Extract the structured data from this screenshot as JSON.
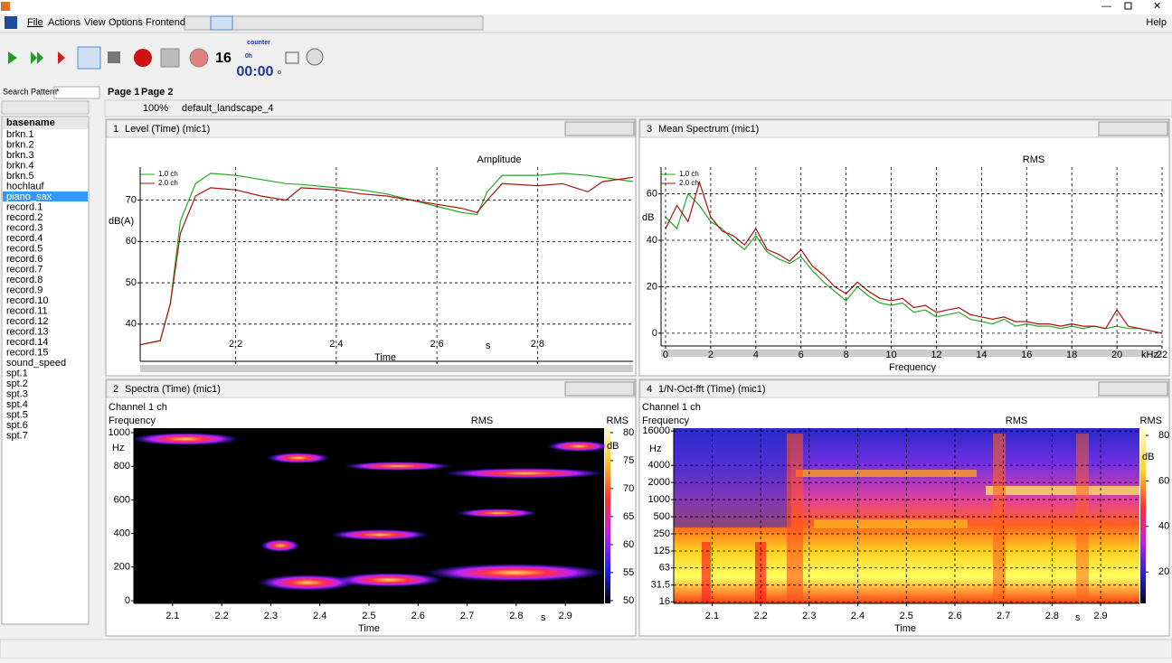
{
  "menu": [
    "File",
    "Actions",
    "View",
    "Options",
    "Frontend"
  ],
  "help": "Help",
  "toolbar": {
    "count": "16",
    "counter_label": "counter",
    "hours": "0h",
    "time": "00:00",
    "small": "o"
  },
  "sidebar": {
    "search_label": "Search Pattern",
    "search_value": "*",
    "header": "basename",
    "items": [
      "brkn.1",
      "brkn.2",
      "brkn.3",
      "brkn.4",
      "brkn.5",
      "hochlauf",
      "piano_sax",
      "record.1",
      "record.2",
      "record.3",
      "record.4",
      "record.5",
      "record.6",
      "record.7",
      "record.8",
      "record.9",
      "record.10",
      "record.11",
      "record.12",
      "record.13",
      "record.14",
      "record.15",
      "sound_speed",
      "spt.1",
      "spt.2",
      "spt.3",
      "spt.4",
      "spt.5",
      "spt.6",
      "spt.7"
    ],
    "selected": "piano_sax"
  },
  "tabs": [
    "Page 1",
    "Page 2"
  ],
  "zoom": "100%",
  "layout": "default_landscape_4",
  "panels": [
    {
      "number": "1",
      "title": "Level (Time) (mic1)"
    },
    {
      "number": "3",
      "title": "Mean Spectrum (mic1)"
    },
    {
      "number": "2",
      "title": "Spectra (Time) (mic1)"
    },
    {
      "number": "4",
      "title": "1/N-Oct-fft  (Time) (mic1)"
    }
  ],
  "chart_data": [
    {
      "type": "line",
      "title": "Amplitude",
      "x_label": "Time",
      "x_unit": "s",
      "y_label": "dB(A)",
      "x": [
        2.01,
        2.05,
        2.07,
        2.09,
        2.12,
        2.15,
        2.2,
        2.25,
        2.3,
        2.33,
        2.4,
        2.45,
        2.5,
        2.55,
        2.6,
        2.65,
        2.68,
        2.7,
        2.73,
        2.8,
        2.85,
        2.9,
        2.93,
        2.99
      ],
      "series": [
        {
          "name": "1.0 ch",
          "color": "#22aa22",
          "values": [
            35,
            36,
            45,
            65,
            74,
            76.5,
            76,
            75,
            74,
            73.8,
            73,
            72.5,
            71.5,
            70,
            68.5,
            67,
            66.5,
            72,
            76,
            76,
            76.5,
            76,
            75.5,
            74.5
          ]
        },
        {
          "name": "2.0 ch",
          "color": "#aa1111",
          "values": [
            35,
            36,
            45,
            62,
            71,
            73,
            72.5,
            71,
            70,
            73,
            72.5,
            71.5,
            71,
            70,
            69,
            68,
            67,
            70,
            74,
            73.5,
            74,
            72,
            74.5,
            75.5
          ]
        }
      ],
      "xlim": [
        2.01,
        2.99
      ],
      "xticks": [
        2.2,
        2.4,
        2.6,
        2.8
      ],
      "ylim": [
        31,
        78
      ],
      "yticks": [
        40,
        50,
        60,
        70
      ],
      "grid": true
    },
    {
      "type": "line",
      "title": "RMS",
      "x_label": "Frequency",
      "x_unit": "kHz",
      "y_label": "dB",
      "x": [
        0,
        0.5,
        1,
        1.5,
        2,
        2.5,
        3,
        3.5,
        4,
        4.5,
        5,
        5.5,
        6,
        6.5,
        7,
        7.5,
        8,
        8.5,
        9,
        9.5,
        10,
        10.5,
        11,
        11.5,
        12,
        12.5,
        13,
        13.5,
        14,
        14.5,
        15,
        15.5,
        16,
        16.5,
        17,
        17.5,
        18,
        18.5,
        19,
        19.5,
        20,
        20.5,
        21,
        21.5,
        22
      ],
      "series": [
        {
          "name": "1.0 ch",
          "color": "#22aa22",
          "values": [
            50,
            45,
            60,
            55,
            48,
            45,
            40,
            36,
            42,
            35,
            32,
            30,
            33,
            27,
            22,
            18,
            14,
            20,
            16,
            13,
            12,
            13,
            9,
            10,
            7,
            8,
            9,
            6,
            5,
            4,
            6,
            3,
            4,
            3,
            3,
            2,
            3,
            2,
            3,
            2,
            3,
            2,
            2,
            1,
            0
          ]
        },
        {
          "name": "2.0 ch",
          "color": "#aa1111",
          "values": [
            45,
            55,
            48,
            65,
            50,
            44,
            42,
            38,
            45,
            36,
            34,
            31,
            36,
            29,
            25,
            20,
            17,
            22,
            18,
            15,
            14,
            15,
            11,
            12,
            9,
            10,
            11,
            8,
            7,
            6,
            7,
            5,
            5,
            4,
            4,
            3,
            4,
            3,
            3,
            2,
            10,
            3,
            2,
            1,
            0
          ]
        }
      ],
      "xlim": [
        -0.2,
        22
      ],
      "xticks": [
        0,
        2,
        4,
        6,
        8,
        10,
        12,
        14,
        16,
        18,
        20,
        22
      ],
      "ylim": [
        -5.5,
        71.5
      ],
      "yticks": [
        0,
        20,
        40,
        60
      ],
      "grid": true
    },
    {
      "type": "heatmap",
      "channel": "Channel 1 ch",
      "title": "RMS",
      "x_label": "Time",
      "x_unit": "s",
      "y_label": "Frequency",
      "y_unit": "Hz",
      "colorbar_label": "RMS",
      "colorbar_unit": "dB",
      "xlim": [
        2.021,
        2.979
      ],
      "xticks": [
        2.1,
        2.2,
        2.3,
        2.4,
        2.5,
        2.6,
        2.7,
        2.8,
        2.9
      ],
      "ylim": [
        -16,
        1027
      ],
      "yticks": [
        0,
        200,
        400,
        600,
        800,
        1000
      ],
      "clim": [
        49.5,
        80.8
      ],
      "cticks": [
        50,
        55,
        60,
        65,
        70,
        75,
        80
      ],
      "grid": false
    },
    {
      "type": "heatmap",
      "channel": "Channel 1 ch",
      "title": "RMS",
      "x_label": "Time",
      "x_unit": "s",
      "y_label": "Frequency",
      "y_unit": "Hz",
      "colorbar_label": "RMS",
      "colorbar_unit": "dB",
      "xlim": [
        2.021,
        2.98
      ],
      "xticks": [
        2.1,
        2.2,
        2.3,
        2.4,
        2.5,
        2.6,
        2.7,
        2.8,
        2.9
      ],
      "ylim": [
        15,
        18000
      ],
      "log_y": true,
      "yticks": [
        16,
        31.5,
        63,
        125,
        250,
        500,
        1000,
        2000,
        4000,
        16000
      ],
      "clim": [
        6.2,
        83.2
      ],
      "cticks": [
        20,
        40,
        60,
        80
      ],
      "grid": true
    }
  ]
}
